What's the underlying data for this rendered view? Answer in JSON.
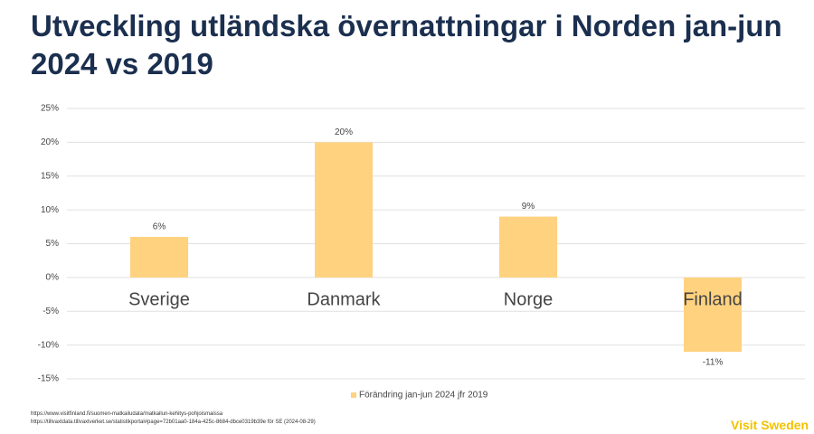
{
  "title": "Utveckling utländska övernattningar i Norden jan-jun 2024 vs 2019",
  "chart_data": {
    "type": "bar",
    "categories": [
      "Sverige",
      "Danmark",
      "Norge",
      "Finland"
    ],
    "series": [
      {
        "name": "Förändring jan-jun 2024 jfr 2019",
        "color": "#ffd27f",
        "values": [
          6,
          20,
          9,
          -11
        ],
        "value_labels": [
          "6%",
          "20%",
          "9%",
          "-11%"
        ]
      }
    ],
    "ylim": [
      -15,
      25
    ],
    "yticks": [
      {
        "value": 25,
        "label": "25%"
      },
      {
        "value": 20,
        "label": "20%"
      },
      {
        "value": 15,
        "label": "15%"
      },
      {
        "value": 10,
        "label": "10%"
      },
      {
        "value": 5,
        "label": "5%"
      },
      {
        "value": 0,
        "label": "0%"
      },
      {
        "value": -5,
        "label": "-5%"
      },
      {
        "value": -10,
        "label": "-10%"
      },
      {
        "value": -15,
        "label": "-15%"
      }
    ],
    "grid": true,
    "legend": "bottom"
  },
  "sources": [
    "https://www.visitfinland.fi/suomen-matkailudata/matkailun-kehitys-pohjoismaissa",
    "https://tillvaxtdata.tillvaxtverket.se/statistikportal#page=72b01aa0-184a-425c-8684-dbce0319b39e för SE (2024-08-29)"
  ],
  "logo": "Visit Sweden"
}
